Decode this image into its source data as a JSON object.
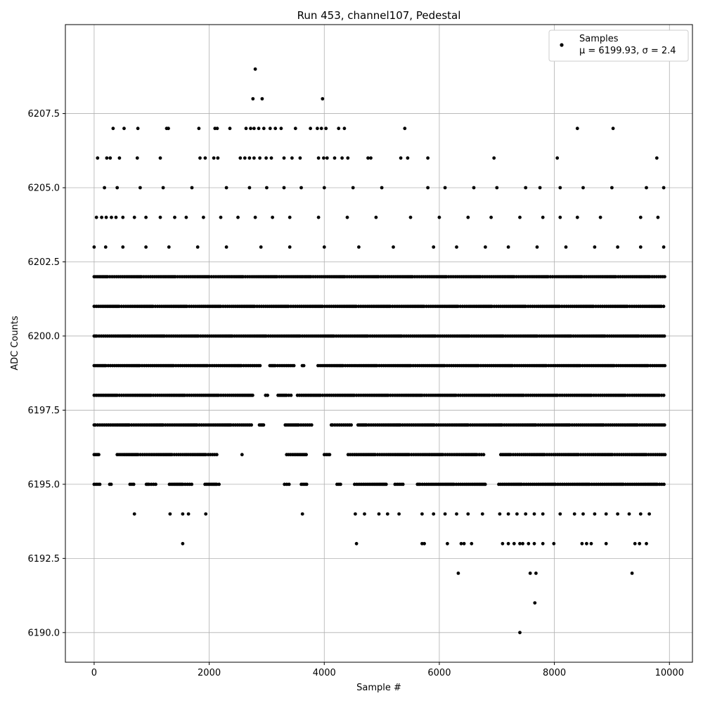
{
  "chart_data": {
    "type": "scatter",
    "title": "Run 453, channel107, Pedestal",
    "xlabel": "Sample #",
    "ylabel": "ADC Counts",
    "xlim": [
      -500,
      10400
    ],
    "ylim": [
      6189.0,
      6210.5
    ],
    "x_ticks": [
      0,
      2000,
      4000,
      6000,
      8000,
      10000
    ],
    "x_tick_labels": [
      "0",
      "2000",
      "4000",
      "6000",
      "8000",
      "10000"
    ],
    "y_ticks": [
      6190.0,
      6192.5,
      6195.0,
      6197.5,
      6200.0,
      6202.5,
      6205.0,
      6207.5
    ],
    "y_tick_labels": [
      "6190.0",
      "6192.5",
      "6195.0",
      "6197.5",
      "6200.0",
      "6202.5",
      "6205.0",
      "6207.5"
    ],
    "grid": true,
    "legend_position": "top-right",
    "legend": {
      "series_label": "Samples",
      "stats_label": "μ = 6199.93, σ = 2.4"
    },
    "marker_color": "#000000",
    "series": [
      {
        "name": "Samples",
        "points": [
          [
            2800,
            6209
          ],
          [
            2760,
            6208
          ],
          [
            2920,
            6208
          ],
          [
            3970,
            6208
          ],
          [
            330,
            6207
          ],
          [
            520,
            6207
          ],
          [
            760,
            6207
          ],
          [
            1260,
            6207
          ],
          [
            1290,
            6207
          ],
          [
            1820,
            6207
          ],
          [
            2100,
            6207
          ],
          [
            2140,
            6207
          ],
          [
            2360,
            6207
          ],
          [
            2640,
            6207
          ],
          [
            2720,
            6207
          ],
          [
            2780,
            6207
          ],
          [
            2860,
            6207
          ],
          [
            2950,
            6207
          ],
          [
            3060,
            6207
          ],
          [
            3150,
            6207
          ],
          [
            3250,
            6207
          ],
          [
            3500,
            6207
          ],
          [
            3760,
            6207
          ],
          [
            3880,
            6207
          ],
          [
            3950,
            6207
          ],
          [
            4030,
            6207
          ],
          [
            4250,
            6207
          ],
          [
            4350,
            6207
          ],
          [
            5400,
            6207
          ],
          [
            8400,
            6207
          ],
          [
            9020,
            6207
          ],
          [
            60,
            6206
          ],
          [
            220,
            6206
          ],
          [
            280,
            6206
          ],
          [
            440,
            6206
          ],
          [
            750,
            6206
          ],
          [
            1150,
            6206
          ],
          [
            1840,
            6206
          ],
          [
            1930,
            6206
          ],
          [
            2080,
            6206
          ],
          [
            2150,
            6206
          ],
          [
            2540,
            6206
          ],
          [
            2620,
            6206
          ],
          [
            2700,
            6206
          ],
          [
            2780,
            6206
          ],
          [
            2880,
            6206
          ],
          [
            2990,
            6206
          ],
          [
            3080,
            6206
          ],
          [
            3300,
            6206
          ],
          [
            3440,
            6206
          ],
          [
            3580,
            6206
          ],
          [
            3900,
            6206
          ],
          [
            3990,
            6206
          ],
          [
            4050,
            6206
          ],
          [
            4180,
            6206
          ],
          [
            4310,
            6206
          ],
          [
            4410,
            6206
          ],
          [
            4760,
            6206
          ],
          [
            4810,
            6206
          ],
          [
            5330,
            6206
          ],
          [
            5450,
            6206
          ],
          [
            5800,
            6206
          ],
          [
            6950,
            6206
          ],
          [
            8050,
            6206
          ],
          [
            9780,
            6206
          ],
          [
            40,
            6204
          ],
          [
            130,
            6204
          ],
          [
            210,
            6204
          ],
          [
            300,
            6204
          ],
          [
            380,
            6204
          ],
          [
            500,
            6204
          ],
          [
            700,
            6204
          ],
          [
            900,
            6204
          ],
          [
            1150,
            6204
          ],
          [
            1400,
            6204
          ],
          [
            1600,
            6204
          ],
          [
            1900,
            6204
          ],
          [
            2200,
            6204
          ],
          [
            2500,
            6204
          ],
          [
            2800,
            6204
          ],
          [
            3100,
            6204
          ],
          [
            3400,
            6204
          ],
          [
            3900,
            6204
          ],
          [
            4400,
            6204
          ],
          [
            4900,
            6204
          ],
          [
            5500,
            6204
          ],
          [
            6000,
            6204
          ],
          [
            6500,
            6204
          ],
          [
            6900,
            6204
          ],
          [
            7400,
            6204
          ],
          [
            7800,
            6204
          ],
          [
            8100,
            6204
          ],
          [
            8400,
            6204
          ],
          [
            8800,
            6204
          ],
          [
            9500,
            6204
          ],
          [
            9800,
            6204
          ],
          [
            180,
            6205
          ],
          [
            400,
            6205
          ],
          [
            800,
            6205
          ],
          [
            1200,
            6205
          ],
          [
            1700,
            6205
          ],
          [
            2300,
            6205
          ],
          [
            2700,
            6205
          ],
          [
            3000,
            6205
          ],
          [
            3300,
            6205
          ],
          [
            3600,
            6205
          ],
          [
            4000,
            6205
          ],
          [
            4500,
            6205
          ],
          [
            5000,
            6205
          ],
          [
            5800,
            6205
          ],
          [
            6100,
            6205
          ],
          [
            6600,
            6205
          ],
          [
            7000,
            6205
          ],
          [
            7500,
            6205
          ],
          [
            7750,
            6205
          ],
          [
            8100,
            6205
          ],
          [
            8500,
            6205
          ],
          [
            9000,
            6205
          ],
          [
            9600,
            6205
          ],
          [
            9900,
            6205
          ],
          [
            0,
            6203
          ],
          [
            200,
            6203
          ],
          [
            500,
            6203
          ],
          [
            900,
            6203
          ],
          [
            1300,
            6203
          ],
          [
            1800,
            6203
          ],
          [
            2300,
            6203
          ],
          [
            2900,
            6203
          ],
          [
            3400,
            6203
          ],
          [
            4000,
            6203
          ],
          [
            4600,
            6203
          ],
          [
            5200,
            6203
          ],
          [
            5900,
            6203
          ],
          [
            6300,
            6203
          ],
          [
            6800,
            6203
          ],
          [
            7200,
            6203
          ],
          [
            7700,
            6203
          ],
          [
            8200,
            6203
          ],
          [
            8700,
            6203
          ],
          [
            9100,
            6203
          ],
          [
            9500,
            6203
          ],
          [
            9900,
            6203
          ],
          [
            700,
            6194
          ],
          [
            1320,
            6194
          ],
          [
            1540,
            6194
          ],
          [
            1640,
            6194
          ],
          [
            1940,
            6194
          ],
          [
            3620,
            6194
          ],
          [
            4540,
            6194
          ],
          [
            4700,
            6194
          ],
          [
            4950,
            6194
          ],
          [
            5100,
            6194
          ],
          [
            5300,
            6194
          ],
          [
            5700,
            6194
          ],
          [
            5900,
            6194
          ],
          [
            6100,
            6194
          ],
          [
            6300,
            6194
          ],
          [
            6500,
            6194
          ],
          [
            6750,
            6194
          ],
          [
            7050,
            6194
          ],
          [
            7200,
            6194
          ],
          [
            7350,
            6194
          ],
          [
            7500,
            6194
          ],
          [
            7650,
            6194
          ],
          [
            7800,
            6194
          ],
          [
            8100,
            6194
          ],
          [
            8350,
            6194
          ],
          [
            8500,
            6194
          ],
          [
            8700,
            6194
          ],
          [
            8900,
            6194
          ],
          [
            9100,
            6194
          ],
          [
            9300,
            6194
          ],
          [
            9500,
            6194
          ],
          [
            9650,
            6194
          ],
          [
            1540,
            6193
          ],
          [
            4560,
            6193
          ],
          [
            5700,
            6193
          ],
          [
            5740,
            6193
          ],
          [
            6140,
            6193
          ],
          [
            6380,
            6193
          ],
          [
            6430,
            6193
          ],
          [
            6560,
            6193
          ],
          [
            7100,
            6193
          ],
          [
            7200,
            6193
          ],
          [
            7300,
            6193
          ],
          [
            7400,
            6193
          ],
          [
            7450,
            6193
          ],
          [
            7550,
            6193
          ],
          [
            7650,
            6193
          ],
          [
            7800,
            6193
          ],
          [
            7990,
            6193
          ],
          [
            8480,
            6193
          ],
          [
            8560,
            6193
          ],
          [
            8640,
            6193
          ],
          [
            8900,
            6193
          ],
          [
            9400,
            6193
          ],
          [
            9480,
            6193
          ],
          [
            9600,
            6193
          ],
          [
            6330,
            6192
          ],
          [
            7580,
            6192
          ],
          [
            7680,
            6192
          ],
          [
            9350,
            6192
          ],
          [
            7660,
            6191
          ],
          [
            7400,
            6190
          ]
        ]
      }
    ],
    "dense_levels": {
      "comment_values": "ADC levels sampled nearly continuously from x = 0 to 10000",
      "levels": [
        6202,
        6201,
        6200,
        6199,
        6198,
        6197,
        6196,
        6195
      ],
      "x_start": 0,
      "x_end": 9930,
      "gaps": {
        "6199": [
          [
            2900,
            3050
          ],
          [
            3500,
            3600
          ],
          [
            3650,
            3880
          ]
        ],
        "6198": [
          [
            2760,
            2950
          ],
          [
            3020,
            3180
          ],
          [
            3450,
            3500
          ]
        ],
        "6197": [
          [
            2760,
            2850
          ],
          [
            2950,
            3300
          ],
          [
            3800,
            4100
          ],
          [
            4500,
            4580
          ]
        ],
        "6196": [
          [
            100,
            380
          ],
          [
            2150,
            2550
          ],
          [
            2600,
            3320
          ],
          [
            3700,
            3970
          ],
          [
            4100,
            4400
          ],
          [
            6800,
            7050
          ]
        ],
        "6195": [
          [
            100,
            250
          ],
          [
            300,
            600
          ],
          [
            700,
            900
          ],
          [
            1100,
            1300
          ],
          [
            1700,
            1900
          ],
          [
            2200,
            2600
          ],
          [
            2620,
            3300
          ],
          [
            3400,
            3600
          ],
          [
            3700,
            4200
          ],
          [
            4300,
            4500
          ],
          [
            5100,
            5200
          ],
          [
            5400,
            5600
          ],
          [
            6800,
            7000
          ]
        ]
      }
    }
  }
}
